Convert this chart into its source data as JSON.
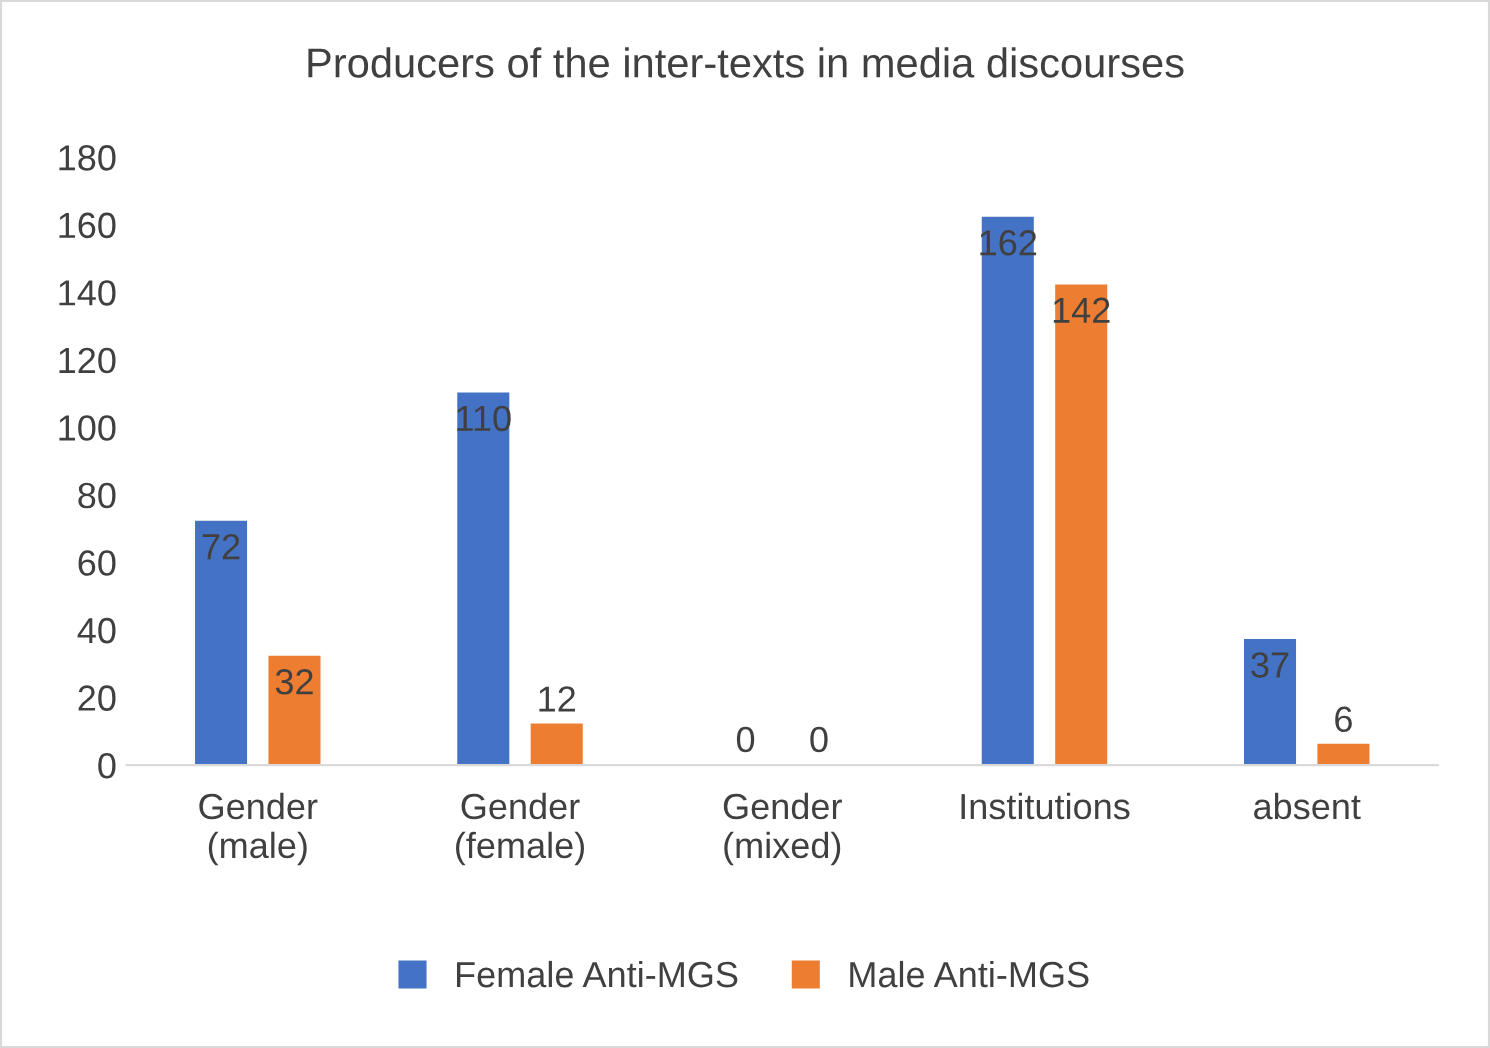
{
  "chart_data": {
    "type": "bar",
    "title": "Producers of the inter-texts in media discourses",
    "categories": [
      "Gender\n(male)",
      "Gender\n(female)",
      "Gender\n(mixed)",
      "Institutions",
      "absent"
    ],
    "series": [
      {
        "name": "Female Anti-MGS",
        "color": "#4472c4",
        "values": [
          72,
          110,
          0,
          162,
          37
        ]
      },
      {
        "name": "Male Anti-MGS",
        "color": "#ed7d31",
        "values": [
          32,
          12,
          0,
          142,
          6
        ]
      }
    ],
    "ylim": [
      0,
      180
    ],
    "yticks": [
      0,
      20,
      40,
      60,
      80,
      100,
      120,
      140,
      160,
      180
    ],
    "grid": false,
    "legend": "bottom",
    "data_labels": true
  }
}
